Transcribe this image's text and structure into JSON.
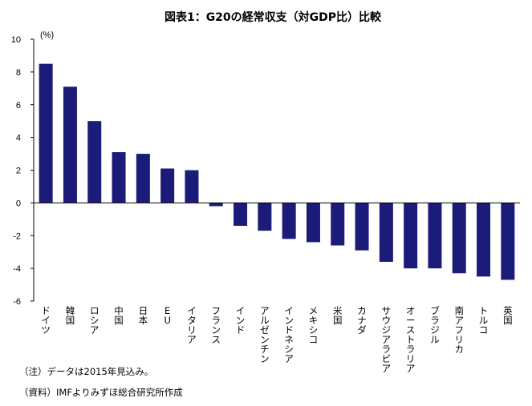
{
  "chart_data": {
    "type": "bar",
    "title": "図表1：G20の経常収支（対GDP比）比較",
    "ylabel": "(%)",
    "xlabel": "",
    "ylim": [
      -6,
      10
    ],
    "yticks": [
      10,
      8,
      6,
      4,
      2,
      0,
      -2,
      -4,
      -6
    ],
    "grid": false,
    "bar_color": "#1b1b7a",
    "categories": [
      "ドイツ",
      "韓国",
      "ロシア",
      "中国",
      "日本",
      "EU",
      "イタリア",
      "フランス",
      "インド",
      "アルゼンチン",
      "インドネシア",
      "メキシコ",
      "米国",
      "カナダ",
      "サウジアラビア",
      "オーストラリア",
      "ブラジル",
      "南アフリカ",
      "トルコ",
      "英国"
    ],
    "values": [
      8.5,
      7.1,
      5.0,
      3.1,
      3.0,
      2.1,
      2.0,
      -0.2,
      -1.4,
      -1.7,
      -2.2,
      -2.4,
      -2.6,
      -2.9,
      -3.6,
      -4.0,
      -4.0,
      -4.3,
      -4.5,
      -4.7
    ]
  },
  "notes": {
    "note": "（注）データは2015年見込み。",
    "source": "（資料）IMFよりみずほ総合研究所作成"
  }
}
